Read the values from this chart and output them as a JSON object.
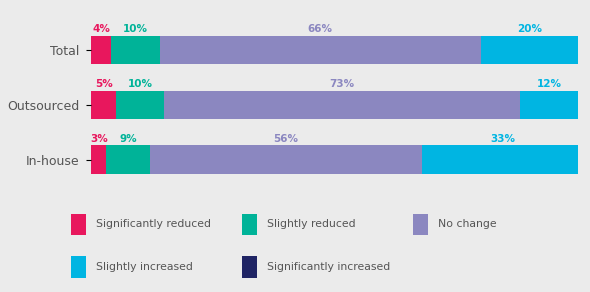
{
  "categories": [
    "Total",
    "Outsourced",
    "In-house"
  ],
  "segments": [
    {
      "label": "Significantly reduced",
      "color": "#e8175d",
      "values": [
        4,
        5,
        3
      ]
    },
    {
      "label": "Slightly reduced",
      "color": "#00b398",
      "values": [
        10,
        10,
        9
      ]
    },
    {
      "label": "No change",
      "color": "#8b87c0",
      "values": [
        66,
        73,
        56
      ]
    },
    {
      "label": "Slightly increased",
      "color": "#00b5e2",
      "values": [
        20,
        12,
        33
      ]
    },
    {
      "label": "Significantly increased",
      "color": "#1f2464",
      "values": [
        0,
        0,
        0
      ]
    }
  ],
  "pct_colors": {
    "Significantly reduced": "#e8175d",
    "Slightly reduced": "#00b398",
    "No change": "#8b87c0",
    "Slightly increased": "#00b5e2",
    "Significantly increased": "#1f2464"
  },
  "legend_items": [
    [
      "Significantly reduced",
      "#e8175d"
    ],
    [
      "Slightly reduced",
      "#00b398"
    ],
    [
      "No change",
      "#8b87c0"
    ],
    [
      "Slightly increased",
      "#00b5e2"
    ],
    [
      "Significantly increased",
      "#1f2464"
    ]
  ],
  "background_color": "#ebebeb",
  "text_color": "#555555",
  "bar_height": 0.52,
  "xlim": [
    0,
    100
  ],
  "figsize": [
    5.9,
    2.92
  ],
  "dpi": 100
}
